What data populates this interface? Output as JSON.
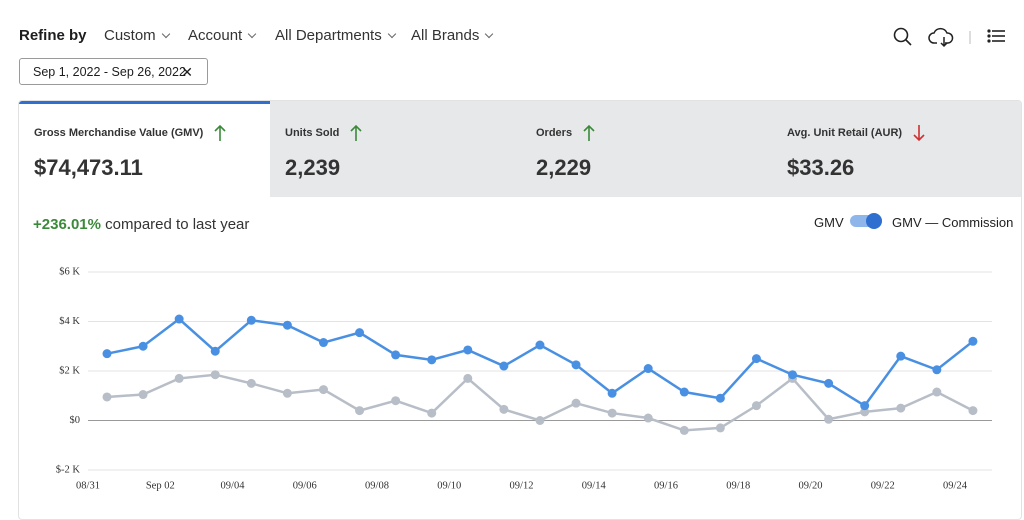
{
  "header": {
    "title": "Refine by",
    "filters": [
      "Custom",
      "Account",
      "All Departments",
      "All Brands"
    ]
  },
  "date_range": "Sep 1, 2022 - Sep 26, 2022",
  "kpis": [
    {
      "label": "Gross Merchandise Value (GMV)",
      "value": "$74,473.11",
      "trend": "up"
    },
    {
      "label": "Units Sold",
      "value": "2,239",
      "trend": "up"
    },
    {
      "label": "Orders",
      "value": "2,229",
      "trend": "up"
    },
    {
      "label": "Avg. Unit Retail (AUR)",
      "value": "$33.26",
      "trend": "down"
    }
  ],
  "comparison": {
    "value": "+236.01%",
    "text": "compared to last year"
  },
  "toggle": {
    "left": "GMV",
    "right": "GMV — Commission"
  },
  "chart_data": {
    "type": "line",
    "x_tick_labels": [
      "08/31",
      "Sep 02",
      "09/04",
      "09/06",
      "09/08",
      "09/10",
      "09/12",
      "09/14",
      "09/16",
      "09/18",
      "09/20",
      "09/22",
      "09/24"
    ],
    "series": [
      {
        "color": "#4a90e2",
        "values": [
          2700,
          3000,
          4100,
          2800,
          4050,
          3850,
          3150,
          3550,
          2650,
          2450,
          2850,
          2200,
          3050,
          2250,
          1100,
          2100,
          1150,
          900,
          2500,
          1850,
          1500,
          600,
          2600,
          2050,
          3200
        ]
      },
      {
        "color": "#b8bec7",
        "values": [
          950,
          1050,
          1700,
          1850,
          1500,
          1100,
          1250,
          400,
          800,
          300,
          1700,
          450,
          0,
          700,
          300,
          100,
          -400,
          -300,
          600,
          1700,
          50,
          350,
          500,
          1150,
          400
        ]
      }
    ],
    "ylim": [
      -2000,
      6000
    ],
    "yticks": [
      {
        "value": -2000,
        "label": "$-2 K"
      },
      {
        "value": 0,
        "label": "$0"
      },
      {
        "value": 2000,
        "label": "$2 K"
      },
      {
        "value": 4000,
        "label": "$4 K"
      },
      {
        "value": 6000,
        "label": "$6 K"
      }
    ],
    "grid": true
  }
}
